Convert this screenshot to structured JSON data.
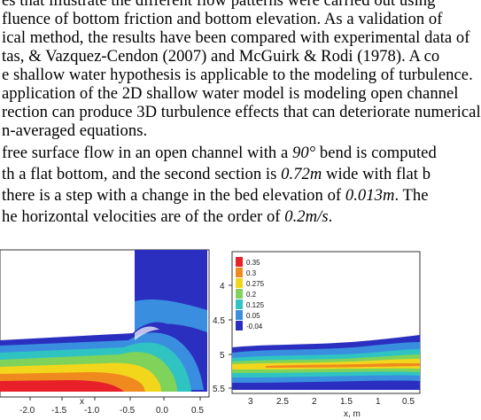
{
  "paragraph_lines": [
    [
      "es that illustrate the different flow patterns were carried out using",
      ""
    ],
    [
      "fluence of bottom friction and bottom elevation. As a validation of",
      ""
    ],
    [
      "ical method, the results have been compared with experimental data of",
      ""
    ],
    [
      "tas, & Vazquez-Cendon (2007) and McGuirk & Rodi (1978). A co",
      ""
    ],
    [
      "e shallow water hypothesis is applicable to the modeling of turbulence.",
      ""
    ],
    [
      "application of the 2D shallow water model is modeling open channel",
      ""
    ],
    [
      "rection can produce 3D turbulence effects that can deteriorate numerical",
      ""
    ],
    [
      "n-averaged equations.",
      ""
    ]
  ],
  "line9": {
    "a": "free surface flow in an open channel with a ",
    "math": "90°",
    "b": " bend is computed"
  },
  "line10": {
    "a": "th a flat bottom, and the second section is ",
    "math": "0.72m",
    "b": " wide with flat b"
  },
  "line11": {
    "a": "there is a step with a change in the bed elevation of ",
    "math": "0.013m",
    "b": ". The"
  },
  "line12": {
    "a": "he horizontal velocities are of the order of ",
    "math": "0.2m/s",
    "b": "."
  },
  "fig_left": {
    "x_ticks": [
      "-2.0",
      "-1.5",
      "-1.0",
      "-0.5",
      "0.0",
      "0.5"
    ],
    "x_label": "x"
  },
  "fig_right": {
    "legend": [
      "0.35",
      "0.3",
      "0.275",
      "0.2",
      "0.125",
      "0.05",
      "-0.04"
    ],
    "legend_colors": [
      "#e8202a",
      "#f08a1e",
      "#f2d61c",
      "#7fd35a",
      "#2fc4c2",
      "#3a8ee0",
      "#2b2fbf"
    ],
    "y_ticks": [
      "4",
      "4.5",
      "5",
      "5.5"
    ],
    "x_ticks": [
      "3",
      "2.5",
      "2",
      "1.5",
      "1",
      "0.5"
    ],
    "x_label": "x, m"
  }
}
